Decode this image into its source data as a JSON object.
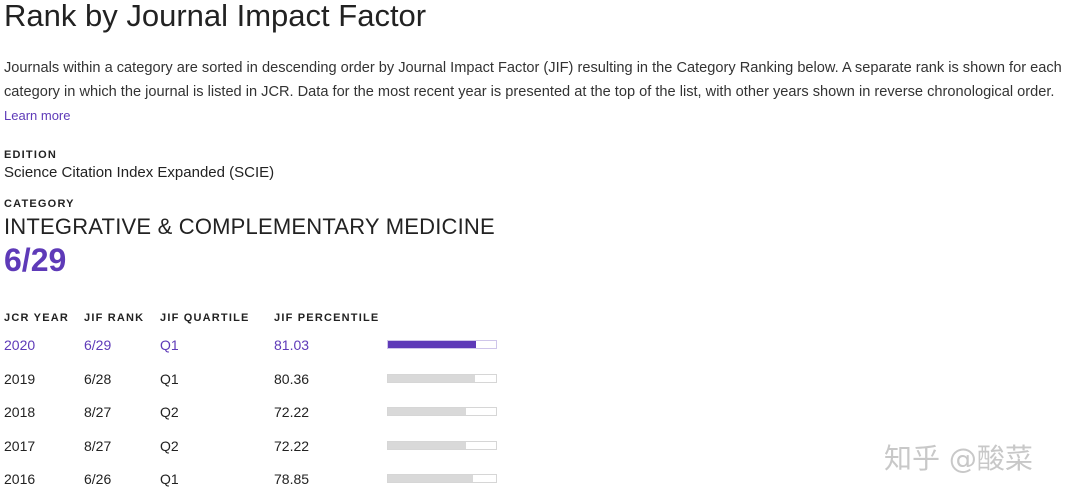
{
  "page": {
    "title": "Rank by Journal Impact Factor",
    "description": "Journals within a category are sorted in descending order by Journal Impact Factor (JIF) resulting in the Category Ranking below. A separate rank is shown for each category in which the journal is listed in JCR. Data for the most recent year is presented at the top of the list, with other years shown in reverse chronological order.",
    "learn_more": "Learn more"
  },
  "edition": {
    "label": "EDITION",
    "value": "Science Citation Index Expanded (SCIE)"
  },
  "category": {
    "label": "CATEGORY",
    "value": "INTEGRATIVE & COMPLEMENTARY MEDICINE",
    "rank": "6/29"
  },
  "table": {
    "headers": {
      "year": "JCR YEAR",
      "rank": "JIF RANK",
      "quartile": "JIF QUARTILE",
      "percentile": "JIF PERCENTILE"
    },
    "rows": [
      {
        "year": "2020",
        "rank": "6/29",
        "quartile": "Q1",
        "percentile": "81.03",
        "percentile_value": 81.03,
        "highlighted": true
      },
      {
        "year": "2019",
        "rank": "6/28",
        "quartile": "Q1",
        "percentile": "80.36",
        "percentile_value": 80.36,
        "highlighted": false
      },
      {
        "year": "2018",
        "rank": "8/27",
        "quartile": "Q2",
        "percentile": "72.22",
        "percentile_value": 72.22,
        "highlighted": false
      },
      {
        "year": "2017",
        "rank": "8/27",
        "quartile": "Q2",
        "percentile": "72.22",
        "percentile_value": 72.22,
        "highlighted": false
      },
      {
        "year": "2016",
        "rank": "6/26",
        "quartile": "Q1",
        "percentile": "78.85",
        "percentile_value": 78.85,
        "highlighted": false
      }
    ]
  },
  "watermark": "知乎 @酸菜",
  "colors": {
    "accent": "#5e3ab8",
    "bar_track": "#d9d9d9"
  }
}
